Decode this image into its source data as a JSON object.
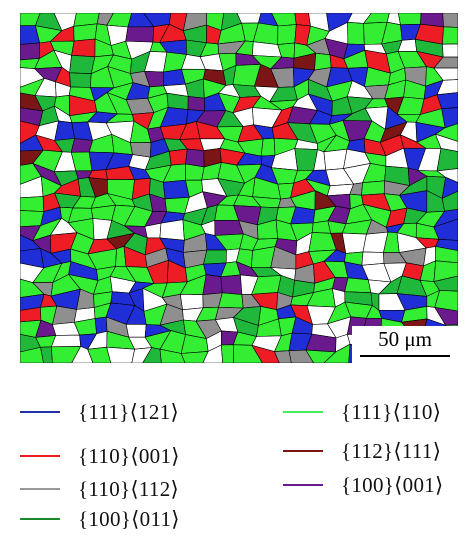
{
  "scale_bar": {
    "label": "50 μm"
  },
  "map_colors": {
    "blue": "#1f2ed6",
    "red": "#ee1c24",
    "gray": "#8f8f8f",
    "green": "#1fb83b",
    "light_green": "#33ee33",
    "dark_red": "#7a1616",
    "purple": "#6a1a8c",
    "white": "#ffffff",
    "boundary": "#000000"
  },
  "legend": [
    {
      "label": "{111}⟨121⟩",
      "color": "#2233aa"
    },
    {
      "label": "{110}⟨001⟩",
      "color": "#ee1c24"
    },
    {
      "label": "{110}⟨112⟩",
      "color": "#999999"
    },
    {
      "label": "{100}⟨011⟩",
      "color": "#1a8a2a"
    },
    {
      "label": "{111}⟨110⟩",
      "color": "#44ee55"
    },
    {
      "label": "{112}⟨111⟩",
      "color": "#7a1616"
    },
    {
      "label": "{100}⟨001⟩",
      "color": "#6a1a8c"
    }
  ]
}
